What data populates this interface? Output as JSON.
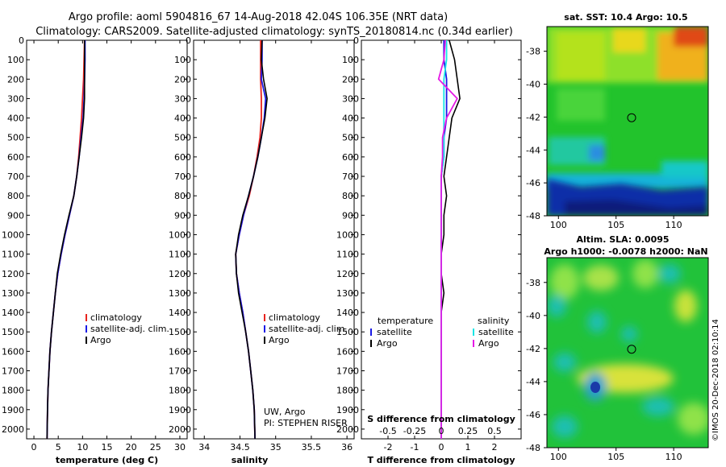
{
  "header": {
    "title_line1": "Argo profile: aoml 5904816_67 14-Aug-2018 42.04S 106.35E (NRT data)",
    "title_line2": "Climatology: CARS2009. Satellite-adjusted climatology: synTS_20180814.nc (0.34d earlier)"
  },
  "colors": {
    "climatology": "#e8231d",
    "satellite": "#1a1ae6",
    "argo": "#000000",
    "sal_satellite": "#19e6e6",
    "sal_argo": "#e619e6"
  },
  "chart_data": [
    {
      "type": "line",
      "xlabel": "temperature (deg C)",
      "x_ticks": [
        "0",
        "5",
        "10",
        "15",
        "20",
        "25",
        "30"
      ],
      "y_ticks": [
        "0",
        "100",
        "200",
        "300",
        "400",
        "500",
        "600",
        "700",
        "800",
        "900",
        "1000",
        "1100",
        "1200",
        "1300",
        "1400",
        "1500",
        "1600",
        "1700",
        "1800",
        "1900",
        "2000"
      ],
      "xlim": [
        -1.5,
        31.5
      ],
      "ylim": [
        2050,
        0
      ],
      "legend": [
        "climatology",
        "satellite-adj. clim.",
        "Argo"
      ],
      "series": [
        {
          "name": "climatology",
          "color_key": "climatology",
          "x": [
            10.4,
            10.3,
            10.2,
            10.0,
            9.8,
            9.5,
            9.2,
            8.8,
            8.2,
            7.3,
            6.4,
            5.6,
            4.9,
            4.4,
            4.0,
            3.6,
            3.3,
            3.1,
            2.9,
            2.8,
            2.7
          ],
          "y": [
            0,
            100,
            200,
            300,
            400,
            500,
            600,
            700,
            800,
            900,
            1000,
            1100,
            1200,
            1300,
            1400,
            1500,
            1600,
            1700,
            1800,
            1900,
            2050
          ]
        },
        {
          "name": "satellite-adj. clim.",
          "color_key": "satellite",
          "x": [
            10.5,
            10.5,
            10.4,
            10.3,
            10.1,
            9.7,
            9.3,
            8.8,
            8.2,
            7.3,
            6.4,
            5.6,
            4.9,
            4.4,
            4.0,
            3.6,
            3.3,
            3.1,
            2.9,
            2.8,
            2.7
          ],
          "y": [
            0,
            100,
            200,
            300,
            400,
            500,
            600,
            700,
            800,
            900,
            1000,
            1100,
            1200,
            1300,
            1400,
            1500,
            1600,
            1700,
            1800,
            1900,
            2050
          ]
        },
        {
          "name": "Argo",
          "color_key": "argo",
          "x": [
            10.4,
            10.4,
            10.4,
            10.4,
            10.2,
            9.8,
            9.3,
            8.8,
            8.2,
            7.2,
            6.3,
            5.5,
            4.8,
            4.4,
            4.0,
            3.6,
            3.3,
            3.1,
            2.9,
            2.8,
            2.7
          ],
          "y": [
            0,
            100,
            200,
            300,
            400,
            500,
            600,
            700,
            800,
            900,
            1000,
            1100,
            1200,
            1300,
            1400,
            1500,
            1600,
            1700,
            1800,
            1900,
            2050
          ]
        }
      ]
    },
    {
      "type": "line",
      "xlabel": "salinity",
      "x_ticks": [
        "34",
        "34.5",
        "35",
        "35.5",
        "36"
      ],
      "y_ticks": [
        "0",
        "100",
        "200",
        "300",
        "400",
        "500",
        "600",
        "700",
        "800",
        "900",
        "1000",
        "1100",
        "1200",
        "1300",
        "1400",
        "1500",
        "1600",
        "1700",
        "1800",
        "1900",
        "2000"
      ],
      "xlim": [
        33.85,
        36.1
      ],
      "ylim": [
        2050,
        0
      ],
      "legend": [
        "climatology",
        "satellite-adj. clim.",
        "Argo"
      ],
      "annotations": [
        "UW, Argo",
        "PI: STEPHEN RISER"
      ],
      "series": [
        {
          "name": "climatology",
          "color_key": "climatology",
          "x": [
            34.79,
            34.79,
            34.79,
            34.8,
            34.8,
            34.78,
            34.74,
            34.69,
            34.63,
            34.55,
            34.49,
            34.44,
            34.45,
            34.49,
            34.54,
            34.58,
            34.62,
            34.65,
            34.68,
            34.7,
            34.71
          ],
          "y": [
            0,
            100,
            200,
            300,
            400,
            500,
            600,
            700,
            800,
            900,
            1000,
            1100,
            1200,
            1300,
            1400,
            1500,
            1600,
            1700,
            1800,
            1900,
            2050
          ]
        },
        {
          "name": "satellite-adj. clim.",
          "color_key": "satellite",
          "x": [
            34.81,
            34.81,
            34.8,
            34.86,
            34.84,
            34.8,
            34.75,
            34.69,
            34.62,
            34.55,
            34.49,
            34.44,
            34.45,
            34.49,
            34.54,
            34.58,
            34.62,
            34.65,
            34.68,
            34.7,
            34.71
          ],
          "y": [
            0,
            100,
            200,
            300,
            400,
            500,
            600,
            700,
            800,
            900,
            1000,
            1100,
            1200,
            1300,
            1400,
            1500,
            1600,
            1700,
            1800,
            1900,
            2050
          ]
        },
        {
          "name": "Argo",
          "color_key": "argo",
          "x": [
            34.81,
            34.8,
            34.83,
            34.88,
            34.85,
            34.8,
            34.75,
            34.69,
            34.62,
            34.54,
            34.48,
            34.44,
            34.45,
            34.48,
            34.53,
            34.58,
            34.62,
            34.65,
            34.68,
            34.7,
            34.71
          ],
          "y": [
            0,
            100,
            200,
            300,
            400,
            500,
            600,
            700,
            800,
            900,
            1000,
            1100,
            1200,
            1300,
            1400,
            1500,
            1600,
            1700,
            1800,
            1900,
            2050
          ]
        }
      ]
    },
    {
      "type": "line",
      "xlabel": "T difference from climatology",
      "xlabel_top": "S difference from climatology",
      "x_ticks": [
        "-2",
        "-1",
        "0",
        "1",
        "2"
      ],
      "x_ticks_top": [
        "-0.5",
        "-0.25",
        "0",
        "0.25",
        "0.5"
      ],
      "xlim": [
        -3,
        3
      ],
      "ylim": [
        2050,
        0
      ],
      "legend_left_title": "temperature",
      "legend_left": [
        "satellite",
        "Argo"
      ],
      "legend_right_title": "salinity",
      "legend_right": [
        "satellite",
        "Argo"
      ],
      "series": [
        {
          "name": "temperature satellite",
          "color_key": "satellite",
          "x": [
            0.1,
            0.1,
            0.2,
            0.2,
            0.2,
            0.1,
            0.1,
            0.0,
            0.0,
            0.0,
            0.0,
            0.0,
            0.0,
            0.0,
            0.0,
            0.0,
            0.0,
            0.0,
            0.0,
            0.0,
            0.0
          ],
          "y": [
            0,
            100,
            200,
            300,
            400,
            500,
            600,
            700,
            800,
            900,
            1000,
            1100,
            1200,
            1300,
            1400,
            1500,
            1600,
            1700,
            1800,
            1900,
            2050
          ]
        },
        {
          "name": "temperature Argo",
          "color_key": "argo",
          "x": [
            0.3,
            0.5,
            0.6,
            0.7,
            0.4,
            0.3,
            0.2,
            0.1,
            0.2,
            0.1,
            0.1,
            0.0,
            0.0,
            0.1,
            0.0,
            0.0,
            0.0,
            0.0,
            0.0,
            0.0,
            0.0
          ],
          "y": [
            0,
            100,
            200,
            300,
            400,
            500,
            600,
            700,
            800,
            900,
            1000,
            1100,
            1200,
            1300,
            1400,
            1500,
            1600,
            1700,
            1800,
            1900,
            2050
          ]
        },
        {
          "name": "salinity satellite",
          "color_key": "sal_satellite",
          "x": [
            0.2,
            0.2,
            0.1,
            0.1,
            0.1,
            0.1,
            0.1,
            0.0,
            0.0,
            0.0,
            0.0,
            0.0,
            0.0,
            0.0,
            0.0,
            0.0,
            0.0,
            0.0,
            0.0,
            0.0,
            0.0
          ],
          "y": [
            0,
            100,
            200,
            300,
            400,
            500,
            600,
            700,
            800,
            900,
            1000,
            1100,
            1200,
            1300,
            1400,
            1500,
            1600,
            1700,
            1800,
            1900,
            2050
          ]
        },
        {
          "name": "salinity Argo",
          "color_key": "sal_argo",
          "x": [
            0.15,
            0.1,
            -0.1,
            0.6,
            0.2,
            0.05,
            0.05,
            0.0,
            0.0,
            0.0,
            0.0,
            0.0,
            0.0,
            0.0,
            0.0,
            0.0,
            0.0,
            0.0,
            0.0,
            0.0,
            0.0
          ],
          "y": [
            0,
            100,
            200,
            300,
            400,
            500,
            600,
            700,
            800,
            900,
            1000,
            1100,
            1200,
            1300,
            1400,
            1500,
            1600,
            1700,
            1800,
            1900,
            2050
          ]
        }
      ]
    },
    {
      "type": "heatmap",
      "title": "sat. SST: 10.4 Argo: 10.5",
      "x_ticks": [
        "100",
        "105",
        "110"
      ],
      "y_ticks": [
        "-38",
        "-40",
        "-42",
        "-44",
        "-46",
        "-48"
      ],
      "xlim": [
        99,
        113
      ],
      "ylim": [
        -48,
        -36.5
      ],
      "marker": {
        "lon": 106.35,
        "lat": -42.04
      }
    },
    {
      "type": "heatmap",
      "title": "Altim. SLA: 0.0095",
      "subtitle": "Argo h1000: -0.0078 h2000: NaN",
      "x_ticks": [
        "100",
        "105",
        "110"
      ],
      "y_ticks": [
        "-38",
        "-40",
        "-42",
        "-44",
        "-46",
        "-48"
      ],
      "xlim": [
        99,
        113
      ],
      "ylim": [
        -48,
        -36.5
      ],
      "marker": {
        "lon": 106.35,
        "lat": -42.04
      }
    }
  ],
  "credit": "©IMOS 20-Dec-2018 02:10:14"
}
